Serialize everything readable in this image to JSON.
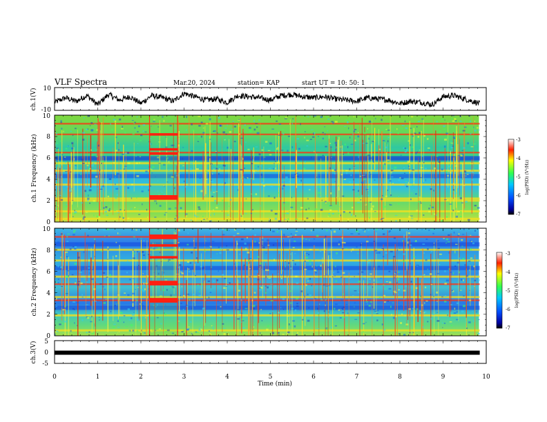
{
  "header": {
    "title": "VLF Spectra",
    "date": "Mar.20, 2024",
    "station": "station= KAP",
    "start_ut": "start  UT =   10: 50: 1"
  },
  "chart_data": [
    {
      "type": "line",
      "name": "ch1-waveform",
      "ylabel": "ch.1(V)",
      "ylim": [
        -10,
        10
      ],
      "yticks": [
        "10",
        "-10"
      ],
      "xlim": [
        0,
        10
      ],
      "x": [
        0,
        0.25,
        0.5,
        0.75,
        1.0,
        1.25,
        1.5,
        1.75,
        2.0,
        2.25,
        2.5,
        2.75,
        3.0,
        3.25,
        3.5,
        3.75,
        4.0,
        4.25,
        4.5,
        4.75,
        5.0,
        5.25,
        5.5,
        5.75,
        6.0,
        6.25,
        6.5,
        6.75,
        7.0,
        7.25,
        7.5,
        7.75,
        8.0,
        8.25,
        8.5,
        8.75,
        9.0,
        9.25,
        9.5,
        9.85
      ],
      "y": [
        -3,
        1,
        -2,
        3,
        -5,
        4,
        -1,
        2,
        -4,
        3,
        1,
        -2,
        5,
        2,
        -1,
        0,
        -3,
        3,
        2,
        1,
        -1,
        3,
        4,
        2,
        1,
        2,
        0,
        -1,
        -2,
        1,
        0,
        -1,
        -4,
        -2,
        -3,
        -5,
        2,
        3,
        0,
        -4
      ]
    },
    {
      "type": "heatmap",
      "name": "ch1-spectrogram",
      "ylabel": "ch.1 Frequency (kHz)",
      "xlim": [
        0,
        10
      ],
      "ylim": [
        0,
        10
      ],
      "yticks": [
        "0",
        "2",
        "4",
        "6",
        "8",
        "10"
      ],
      "colorbar": {
        "label": "log(PSD) (V²/Hz)",
        "range": [
          -7,
          -3
        ],
        "ticks": [
          "-3",
          "-4",
          "-5",
          "-6",
          "-7"
        ]
      },
      "data_end_min": 9.85,
      "red_bands_khz": [
        6.5,
        8.2,
        9.2
      ],
      "yellow_bands_khz": [
        0.3,
        1.0,
        2.0,
        2.2,
        3.5,
        4.8,
        5.5
      ],
      "blue_bands_khz": [
        4.3,
        5.9,
        6.0
      ],
      "event_min": [
        2.2,
        2.85
      ]
    },
    {
      "type": "heatmap",
      "name": "ch2-spectrogram",
      "ylabel": "ch.2 Frequency (kHz)",
      "xlim": [
        0,
        10
      ],
      "ylim": [
        0,
        10
      ],
      "yticks": [
        "0",
        "2",
        "4",
        "6",
        "8",
        "10"
      ],
      "colorbar": {
        "label": "log(PSD) (V²/Hz)",
        "range": [
          -7,
          -3
        ],
        "ticks": [
          "-3",
          "-4",
          "-5",
          "-6",
          "-7"
        ]
      },
      "data_end_min": 9.85,
      "red_bands_khz": [
        3.3,
        4.8,
        9.2
      ],
      "yellow_bands_khz": [
        0.5,
        1.9,
        3.6,
        5.5,
        7.0,
        8.0
      ],
      "blue_bands_khz": [
        2.6,
        6.3,
        8.5
      ],
      "event_min": [
        2.2,
        2.85
      ]
    },
    {
      "type": "line",
      "name": "ch3-waveform",
      "ylabel": "ch.3(V)",
      "ylim": [
        -5,
        5
      ],
      "yticks": [
        "5",
        "0",
        "-5"
      ],
      "xlim": [
        0,
        10
      ],
      "x": [
        0,
        9.85
      ],
      "y": [
        -0.3,
        -0.3
      ],
      "xlabel": "Time  (min)",
      "xticks": [
        "0",
        "1",
        "2",
        "3",
        "4",
        "5",
        "6",
        "7",
        "8",
        "9",
        "10"
      ]
    }
  ],
  "colors": {
    "line": "#000000",
    "background": "#ffffff"
  }
}
